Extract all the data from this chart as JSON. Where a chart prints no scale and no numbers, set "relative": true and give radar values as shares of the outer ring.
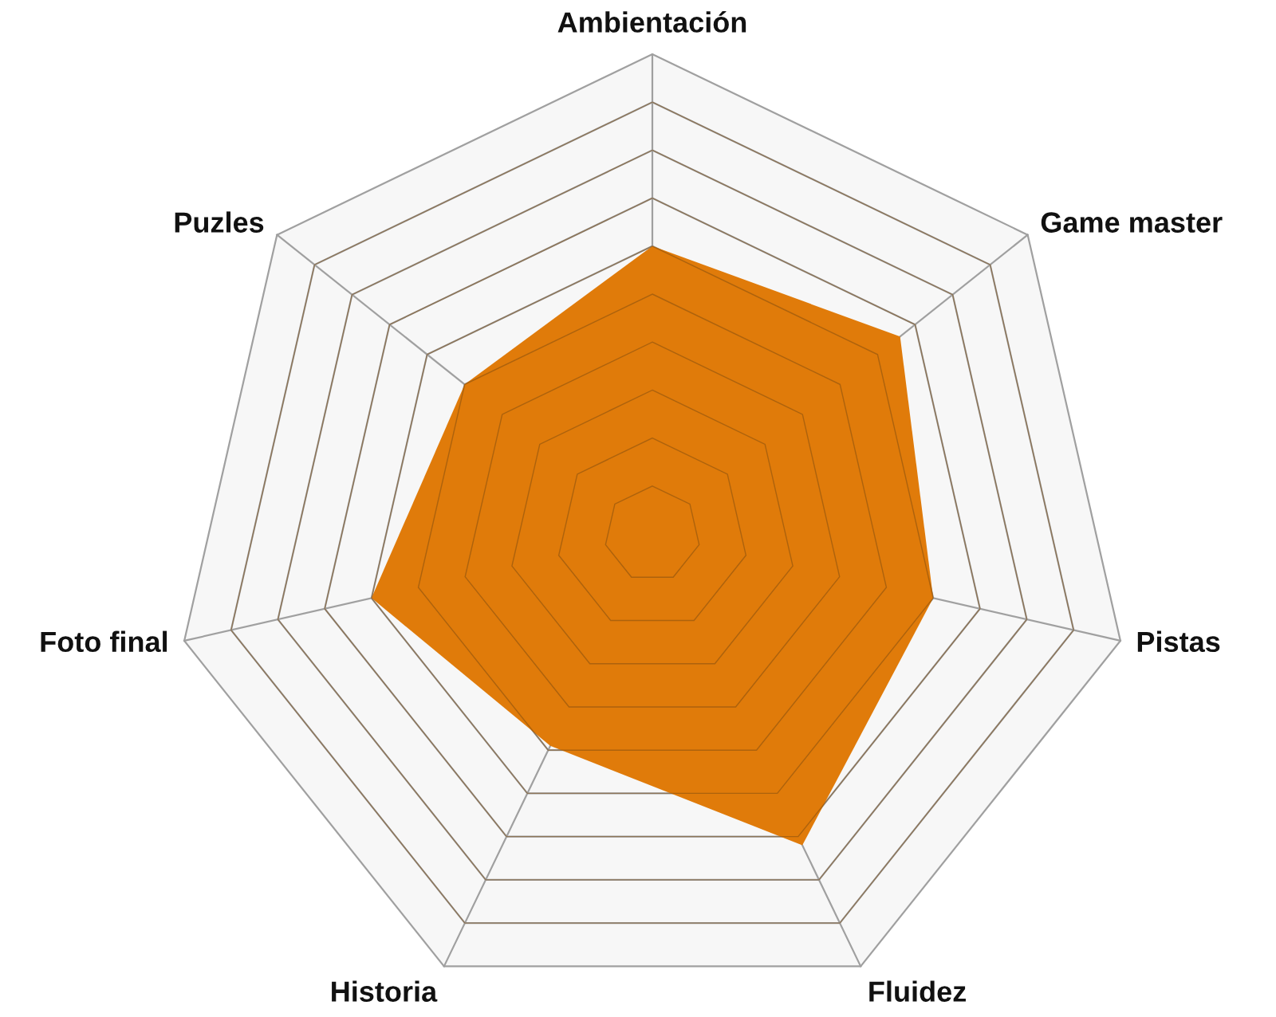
{
  "chart_data": {
    "type": "radar",
    "relative": true,
    "grid": true,
    "categories": [
      "Ambientación",
      "Game master",
      "Pistas",
      "Fluidez",
      "Historia",
      "Foto final",
      "Puzles"
    ],
    "series": [
      {
        "color": "#e07b0a",
        "values": [
          0.6,
          0.66,
          0.6,
          0.72,
          0.49,
          0.6,
          0.5
        ]
      }
    ]
  }
}
